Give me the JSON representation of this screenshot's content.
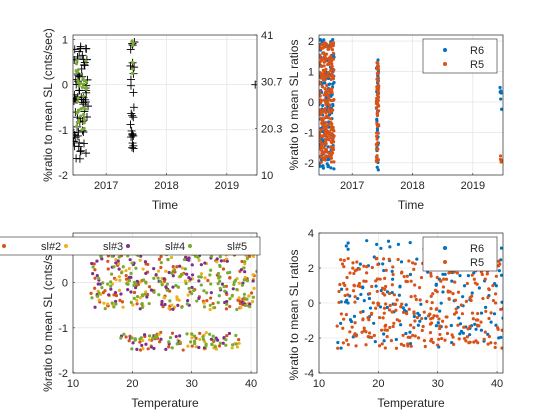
{
  "colors": {
    "blue": "#0072BD",
    "orange": "#D95319",
    "yellow": "#EDB120",
    "purple": "#7E2F8E",
    "green": "#77AC30",
    "black": "#000000",
    "grid": "#dfdfdf",
    "axis": "#262626"
  },
  "chart_data": [
    {
      "type": "scatter",
      "xlabel": "Time",
      "ylabel": "%ratio to mean SL (cnts/sec)",
      "x_ticks": [
        "2017",
        "2018",
        "2019"
      ],
      "x_tick_values": [
        2017,
        2018,
        2019
      ],
      "xlim": [
        2016.45,
        2019.5
      ],
      "ylim": [
        -2,
        1.1
      ],
      "y_ticks": [
        -2,
        -1,
        0,
        1
      ],
      "y2_ticks": [
        "41",
        "30.7",
        "20.3",
        "10"
      ],
      "y2_tick_values": [
        41,
        30.7,
        20.3,
        10
      ],
      "y2lim": [
        10,
        41
      ],
      "grid": true,
      "series": [
        {
          "marker": "plus",
          "color": "black",
          "clusters": [
            {
              "x": [
                2016.45,
                2016.7
              ],
              "y": [
                -1.65,
                0.85
              ],
              "n": 70
            },
            {
              "x": [
                2017.4,
                2017.47
              ],
              "y": [
                -1.5,
                1.0
              ],
              "n": 26
            }
          ],
          "points": [
            [
              2019.47,
              0.0
            ]
          ]
        },
        {
          "marker": "dot",
          "color": "green",
          "clusters": [
            {
              "x": [
                2016.5,
                2016.68
              ],
              "y": [
                -1.0,
                0.65
              ],
              "n": 35
            },
            {
              "x": [
                2017.42,
                2017.46
              ],
              "y": [
                0.2,
                1.05
              ],
              "n": 6
            }
          ]
        }
      ]
    },
    {
      "type": "scatter",
      "xlabel": "Time",
      "ylabel": "%ratio to mean SL ratios",
      "x_ticks": [
        "2017",
        "2018",
        "2019"
      ],
      "x_tick_values": [
        2017,
        2018,
        2019
      ],
      "xlim": [
        2016.45,
        2019.5
      ],
      "ylim": [
        -2.4,
        2.2
      ],
      "y_ticks": [
        -2,
        -1,
        0,
        1,
        2
      ],
      "grid": true,
      "legend": {
        "position": "top-right",
        "entries": [
          "R6",
          "R5"
        ]
      },
      "series": [
        {
          "name": "R6",
          "color": "blue",
          "clusters": [
            {
              "x": [
                2016.45,
                2016.7
              ],
              "y": [
                -2.2,
                2.1
              ],
              "n": 150
            },
            {
              "x": [
                2017.4,
                2017.44
              ],
              "y": [
                -2.3,
                1.4
              ],
              "n": 40
            },
            {
              "x": [
                2019.45,
                2019.48
              ],
              "y": [
                -0.4,
                0.6
              ],
              "n": 6
            }
          ]
        },
        {
          "name": "R5",
          "color": "orange",
          "clusters": [
            {
              "x": [
                2016.45,
                2016.7
              ],
              "y": [
                -2.0,
                1.95
              ],
              "n": 260
            },
            {
              "x": [
                2017.4,
                2017.44
              ],
              "y": [
                -2.0,
                1.3
              ],
              "n": 60
            },
            {
              "x": [
                2019.45,
                2019.48
              ],
              "y": [
                -2.0,
                -1.6
              ],
              "n": 5
            }
          ]
        }
      ]
    },
    {
      "type": "scatter",
      "xlabel": "Temperature",
      "ylabel": "%ratio to mean SL (cnts/sec)",
      "x_ticks": [
        "10",
        "20",
        "30",
        "40"
      ],
      "x_tick_values": [
        10,
        20,
        30,
        40
      ],
      "xlim": [
        10,
        41
      ],
      "ylim": [
        -2,
        1.1
      ],
      "y_ticks": [
        -2,
        -1,
        0
      ],
      "grid": true,
      "legend": {
        "position": "top",
        "entries": [
          "sl#2",
          "sl#3",
          "sl#4",
          "sl#5"
        ]
      },
      "series": [
        {
          "name": "sl#2",
          "color": "orange",
          "clusters": [
            {
              "x": [
                13,
                41
              ],
              "y": [
                -0.6,
                0.9
              ],
              "n": 110
            },
            {
              "x": [
                18,
                38
              ],
              "y": [
                -1.5,
                -1.1
              ],
              "n": 25
            }
          ]
        },
        {
          "name": "sl#3",
          "color": "yellow",
          "clusters": [
            {
              "x": [
                13,
                41
              ],
              "y": [
                -0.6,
                0.9
              ],
              "n": 110
            },
            {
              "x": [
                18,
                38
              ],
              "y": [
                -1.5,
                -1.1
              ],
              "n": 25
            }
          ]
        },
        {
          "name": "sl#4",
          "color": "purple",
          "clusters": [
            {
              "x": [
                13,
                41
              ],
              "y": [
                -0.6,
                0.9
              ],
              "n": 110
            },
            {
              "x": [
                18,
                38
              ],
              "y": [
                -1.5,
                -1.1
              ],
              "n": 25
            }
          ]
        },
        {
          "name": "sl#5",
          "color": "green",
          "clusters": [
            {
              "x": [
                13,
                41
              ],
              "y": [
                -0.6,
                0.9
              ],
              "n": 140
            },
            {
              "x": [
                18,
                38
              ],
              "y": [
                -1.5,
                -1.1
              ],
              "n": 40
            }
          ]
        }
      ]
    },
    {
      "type": "scatter",
      "xlabel": "Temperature",
      "ylabel": "%ratio to mean SL ratios",
      "x_ticks": [
        "10",
        "20",
        "30",
        "40"
      ],
      "x_tick_values": [
        10,
        20,
        30,
        40
      ],
      "xlim": [
        10,
        41
      ],
      "ylim": [
        -4,
        4
      ],
      "y_ticks": [
        -4,
        -2,
        0,
        2,
        4
      ],
      "grid": true,
      "legend": {
        "position": "top-right",
        "entries": [
          "R6",
          "R5"
        ]
      },
      "series": [
        {
          "name": "R6",
          "color": "blue",
          "clusters": [
            {
              "x": [
                13,
                41
              ],
              "y": [
                -2.6,
                3.6
              ],
              "n": 160
            }
          ]
        },
        {
          "name": "R5",
          "color": "orange",
          "clusters": [
            {
              "x": [
                13,
                41
              ],
              "y": [
                -2.6,
                2.6
              ],
              "n": 320
            }
          ]
        }
      ]
    }
  ]
}
